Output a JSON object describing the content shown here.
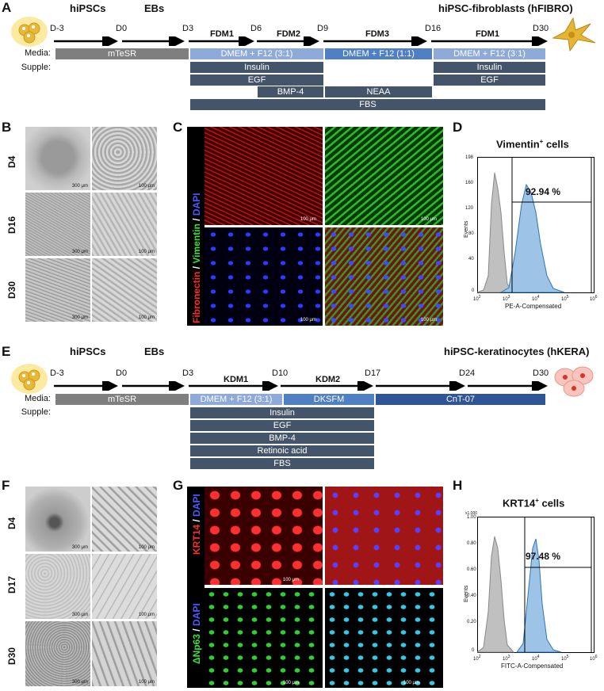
{
  "panels": {
    "A": "A",
    "B": "B",
    "C": "C",
    "D": "D",
    "E": "E",
    "F": "F",
    "G": "G",
    "H": "H"
  },
  "timelineA": {
    "title_left1": "hiPSCs",
    "title_left2": "EBs",
    "title_right": "hiPSC-fibroblasts (hFIBRO)",
    "days": [
      "D-3",
      "D0",
      "D3",
      "D6",
      "D9",
      "D16",
      "D30"
    ],
    "stages": [
      "FDM1",
      "FDM2",
      "FDM3",
      "FDM1"
    ],
    "media_label": "Media:",
    "supple_label": "Supple:",
    "media": [
      "mTeSR",
      "DMEM + F12 (3:1)",
      "DMEM + F12 (1:1)",
      "DMEM + F12 (3:1)"
    ],
    "supple": [
      "Insulin",
      "EGF",
      "BMP-4",
      "NEAA",
      "FBS",
      "Insulin",
      "EGF"
    ]
  },
  "panelB": {
    "rows": [
      "D4",
      "D16",
      "D30"
    ],
    "scale_left": "300 μm",
    "scale_right": "100 μm"
  },
  "panelC": {
    "stain_1": "Fibronectin",
    "sep": " / ",
    "stain_2": "Vimentin",
    "stain_3": "DAPI",
    "scale": "100 μm"
  },
  "panelD": {
    "title": "Vimentin",
    "title_sup": "+",
    "title_suffix": " cells",
    "percent": "92.94 %",
    "ylabel": "Events",
    "xlabel": "PE-A-Compensated",
    "yticks": [
      "198",
      "160",
      "120",
      "80",
      "40",
      "0"
    ],
    "xticks": [
      "10",
      "10",
      "10",
      "10",
      "10"
    ],
    "xexp": [
      "2",
      "3",
      "4",
      "5",
      "6"
    ]
  },
  "timelineE": {
    "title_left1": "hiPSCs",
    "title_left2": "EBs",
    "title_right": "hiPSC-keratinocytes (hKERA)",
    "days": [
      "D-3",
      "D0",
      "D3",
      "D10",
      "D17",
      "D24",
      "D30"
    ],
    "stages": [
      "KDM1",
      "KDM2"
    ],
    "media_label": "Media:",
    "supple_label": "Supple:",
    "media": [
      "mTeSR",
      "DMEM + F12 (3:1)",
      "DKSFM",
      "CnT-07"
    ],
    "supple": [
      "Insulin",
      "EGF",
      "BMP-4",
      "Retinoic acid",
      "FBS"
    ]
  },
  "panelF": {
    "rows": [
      "D4",
      "D17",
      "D30"
    ],
    "scale_left": "300 μm",
    "scale_right": "100 μm"
  },
  "panelG": {
    "stain_1": "KRT14",
    "stain_2": "ΔNp63",
    "sep": " / ",
    "stain_3": "DAPI",
    "scale": "100 μm"
  },
  "panelH": {
    "title": "KRT14",
    "title_sup": "+",
    "title_suffix": " cells",
    "percent": "97.48 %",
    "ylabel": "Events",
    "yunit": "x1,000",
    "xlabel": "FITC-A-Compensated",
    "yticks": [
      "1.00",
      "0.80",
      "0.60",
      "0.40",
      "0.20",
      "0"
    ],
    "xticks": [
      "10",
      "10",
      "10",
      "10",
      "10"
    ],
    "xexp": [
      "2",
      "3",
      "4",
      "5",
      "6"
    ]
  },
  "colors": {
    "gray_bar": "#7f7f7f",
    "light_blue_bar": "#8eaadb",
    "mid_blue_bar": "#4f7fc4",
    "dark_slate_bar": "#44546a",
    "histogram_fill": "#9dc3e6",
    "histogram_gray": "#c0c0c0"
  }
}
